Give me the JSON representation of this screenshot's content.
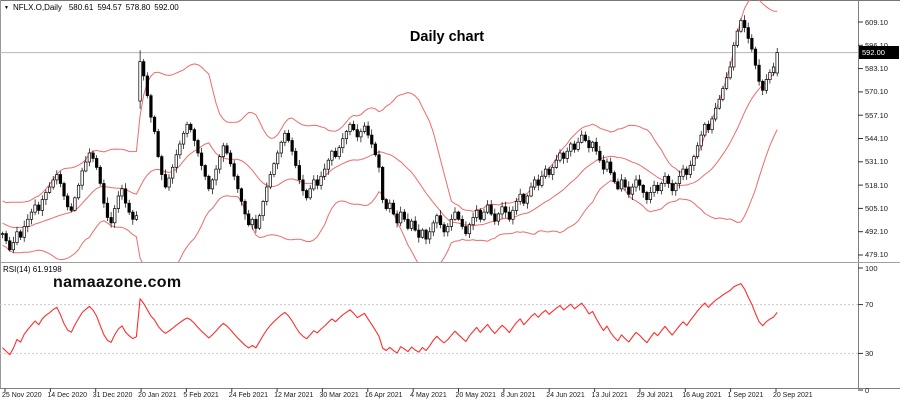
{
  "header": {
    "dropdown_icon": "▼",
    "symbol_label": "NFLX.O,Daily",
    "open": "580.61",
    "high": "594.57",
    "low": "578.80",
    "close": "592.00"
  },
  "chart_data": {
    "type": "candlestick",
    "symbol": "NFLX.O",
    "timeframe": "Daily",
    "title": "Daily chart",
    "watermark": "namaazone.com",
    "last_ohlc": {
      "open": 580.61,
      "high": 594.57,
      "low": 578.8,
      "close": 592.0
    },
    "price_axis": {
      "ticks": [
        609.1,
        596.1,
        583.1,
        570.1,
        557.1,
        544.1,
        531.1,
        518.1,
        505.1,
        492.1,
        479.1
      ],
      "current_price": 592.0,
      "current_price_label": "592.00"
    },
    "date_axis": {
      "labels": [
        "25 Nov 2020",
        "14 Dec 2020",
        "31 Dec 2020",
        "20 Jan 2021",
        "5 Feb 2021",
        "24 Feb 2021",
        "12 Mar 2021",
        "30 Mar 2021",
        "16 Apr 2021",
        "4 May 2021",
        "20 May 2021",
        "8 Jun 2021",
        "24 Jun 2021",
        "13 Jul 2021",
        "29 Jul 2021",
        "16 Aug 2021",
        "1 Sep 2021",
        "20 Sep 2021"
      ],
      "first_tick_x": 5,
      "tick_spacing": 45.35
    },
    "candles": {
      "preroll": [
        510,
        506,
        501,
        496,
        492,
        489,
        492,
        495,
        491,
        488,
        492,
        496,
        499,
        503,
        506,
        509,
        505,
        500,
        495,
        491
      ],
      "closes": [
        491,
        487,
        482,
        486,
        492,
        489,
        495,
        499,
        503,
        507,
        504,
        510,
        514,
        517,
        521,
        524,
        519,
        512,
        506,
        504,
        511,
        518,
        526,
        531,
        536,
        533,
        528,
        519,
        508,
        500,
        497,
        505,
        512,
        516,
        508,
        503,
        499,
        501,
        587,
        579,
        568,
        556,
        548,
        534,
        524,
        517,
        522,
        528,
        535,
        541,
        547,
        552,
        549,
        543,
        536,
        529,
        523,
        516,
        521,
        527,
        534,
        540,
        536,
        530,
        523,
        516,
        509,
        502,
        496,
        499,
        494,
        501,
        509,
        517,
        524,
        530,
        536,
        542,
        547,
        543,
        537,
        529,
        521,
        515,
        511,
        516,
        521,
        518,
        523,
        527,
        532,
        537,
        534,
        539,
        544,
        548,
        552,
        549,
        545,
        548,
        551,
        546,
        541,
        535,
        528,
        510,
        505,
        508,
        502,
        497,
        503,
        499,
        494,
        498,
        493,
        489,
        493,
        488,
        492,
        497,
        501,
        496,
        492,
        495,
        499,
        503,
        499,
        495,
        491,
        496,
        500,
        504,
        499,
        503,
        507,
        502,
        498,
        502,
        506,
        503,
        499,
        504,
        509,
        513,
        508,
        512,
        517,
        521,
        518,
        523,
        527,
        524,
        528,
        532,
        536,
        533,
        537,
        541,
        538,
        542,
        546,
        543,
        539,
        542,
        537,
        532,
        527,
        531,
        525,
        520,
        516,
        521,
        517,
        513,
        517,
        521,
        518,
        514,
        510,
        514,
        518,
        515,
        519,
        523,
        519,
        515,
        519,
        523,
        527,
        524,
        529,
        534,
        540,
        546,
        552,
        549,
        555,
        561,
        566,
        572,
        578,
        584,
        596,
        604,
        610,
        606,
        600,
        594,
        585,
        576,
        571,
        577,
        581,
        584,
        592
      ],
      "overrides": {
        "38": [
          565,
          593.3,
          560.6,
          587
        ],
        "214": [
          580.61,
          594.57,
          578.8,
          592.0
        ]
      }
    },
    "indicators": {
      "bollinger": {
        "period": 20,
        "deviations": 2,
        "color": "#ef6b6b"
      },
      "rsi": {
        "label": "RSI(14) 61.9198",
        "period": 14,
        "value": 61.9198,
        "levels": [
          70,
          30
        ],
        "axis_ticks": [
          100,
          70,
          30,
          0
        ],
        "range": [
          0,
          100
        ],
        "color": "#ff2e2e"
      }
    },
    "colors": {
      "background": "#ffffff",
      "candle_up": "#ffffff",
      "candle_down": "#000000",
      "candle_outline": "#000000",
      "price_line": "#b5b5b5",
      "level_dash": "#c9c9c9",
      "axis_line": "#808080",
      "separator": "#a0a0a0",
      "badge_bg": "#000000",
      "badge_text": "#ffffff",
      "text": "#1a1a1a"
    }
  }
}
